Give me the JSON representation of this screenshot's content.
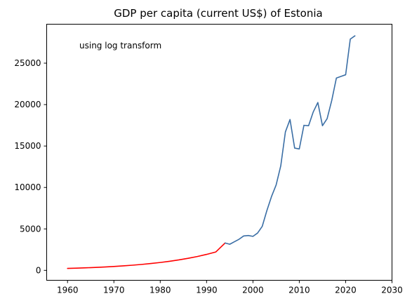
{
  "chart_data": {
    "type": "line",
    "title": "GDP per capita (current US$) of Estonia",
    "annotation": "using log transform",
    "xlabel": "",
    "ylabel": "",
    "xlim": [
      1955.5,
      2030
    ],
    "ylim": [
      -1200,
      29700
    ],
    "xticks": [
      1960,
      1970,
      1980,
      1990,
      2000,
      2010,
      2020,
      2030
    ],
    "yticks": [
      0,
      5000,
      10000,
      15000,
      20000,
      25000
    ],
    "grid": false,
    "series": [
      {
        "color": "#ff0000",
        "x": [
          1960,
          1962,
          1964,
          1966,
          1968,
          1970,
          1972,
          1974,
          1976,
          1978,
          1980,
          1982,
          1984,
          1986,
          1988,
          1990,
          1992,
          1994
        ],
        "y": [
          230,
          265,
          305,
          352,
          405,
          467,
          538,
          620,
          714,
          823,
          948,
          1092,
          1258,
          1450,
          1670,
          1925,
          2220,
          3300
        ]
      },
      {
        "color": "#3a6ea5",
        "x": [
          1994,
          1995,
          1996,
          1997,
          1998,
          1999,
          2000,
          2001,
          2002,
          2003,
          2004,
          2005,
          2006,
          2007,
          2008,
          2009,
          2010,
          2011,
          2012,
          2013,
          2014,
          2015,
          2016,
          2017,
          2018,
          2019,
          2020,
          2021,
          2022
        ],
        "y": [
          3300,
          3150,
          3450,
          3750,
          4150,
          4200,
          4100,
          4500,
          5300,
          7200,
          8900,
          10300,
          12600,
          16700,
          18200,
          14750,
          14650,
          17500,
          17450,
          19100,
          20250,
          17450,
          18300,
          20500,
          23200,
          23400,
          23600,
          27900,
          28300
        ]
      }
    ]
  }
}
